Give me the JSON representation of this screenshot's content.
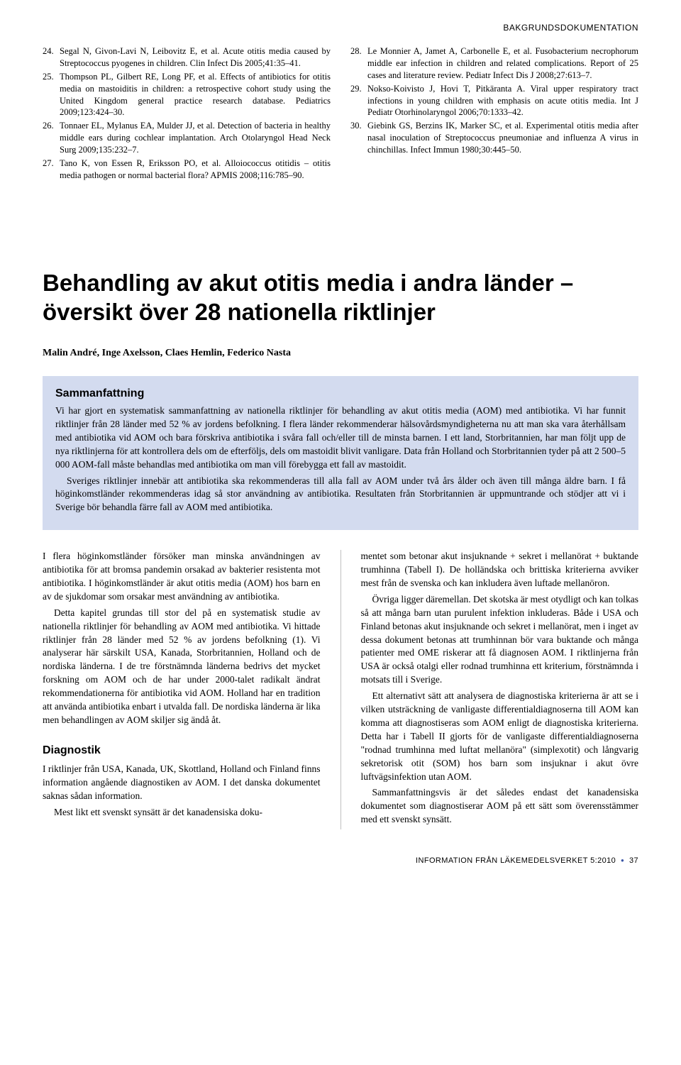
{
  "header": "BAKGRUNDSDOKUMENTATION",
  "refs_left": [
    {
      "n": "24.",
      "t": "Segal N, Givon-Lavi N, Leibovitz E, et al. Acute otitis media caused by Streptococcus pyogenes in children. Clin Infect Dis 2005;41:35–41."
    },
    {
      "n": "25.",
      "t": "Thompson PL, Gilbert RE, Long PF, et al. Effects of antibiotics for otitis media on mastoiditis in children: a retrospective cohort study using the United Kingdom general practice research database. Pediatrics 2009;123:424–30."
    },
    {
      "n": "26.",
      "t": "Tonnaer EL, Mylanus EA, Mulder JJ, et al. Detection of bacteria in healthy middle ears during cochlear implantation. Arch Otolaryngol Head Neck Surg 2009;135:232–7."
    },
    {
      "n": "27.",
      "t": "Tano K, von Essen R, Eriksson PO, et al. Alloiococcus otitidis – otitis media pathogen or normal bacterial flora? APMIS 2008;116:785–90."
    }
  ],
  "refs_right": [
    {
      "n": "28.",
      "t": "Le Monnier A, Jamet A, Carbonelle E, et al. Fusobacterium necrophorum middle ear infection in children and related complications. Report of 25 cases and literature review. Pediatr Infect Dis J 2008;27:613–7."
    },
    {
      "n": "29.",
      "t": "Nokso-Koivisto J, Hovi T, Pitkäranta A. Viral upper respiratory tract infections in young children with emphasis on acute otitis media. Int J Pediatr Otorhinolaryngol 2006;70:1333–42."
    },
    {
      "n": "30.",
      "t": "Giebink GS, Berzins IK, Marker SC, et al. Experimental otitis media after nasal inoculation of Streptococcus pneumoniae and influenza A virus in chinchillas. Infect Immun 1980;30:445–50."
    }
  ],
  "article_title": "Behandling av akut otitis media i andra länder – översikt över 28 nationella riktlinjer",
  "authors": "Malin André, Inge Axelsson, Claes Hemlin, Federico Nasta",
  "summary": {
    "heading": "Sammanfattning",
    "p1": "Vi har gjort en systematisk sammanfattning av nationella riktlinjer för behandling av akut otitis media (AOM) med antibiotika. Vi har funnit riktlinjer från 28 länder med 52 % av jordens befolkning. I flera länder rekommenderar hälsovårdsmyndigheterna nu att man ska vara återhållsam med antibiotika vid AOM och bara förskriva antibiotika i svåra fall och/eller till de minsta barnen. I ett land, Storbritannien, har man följt upp de nya riktlinjerna för att kontrollera dels om de efterföljs, dels om mastoidit blivit vanligare. Data från Holland och Storbritannien tyder på att 2 500–5 000 AOM-fall måste behandlas med antibiotika om man vill förebygga ett fall av mastoidit.",
    "p2": "Sveriges riktlinjer innebär att antibiotika ska rekommenderas till alla fall av AOM under två års ålder och även till många äldre barn. I få höginkomstländer rekommenderas idag så stor användning av antibiotika. Resultaten från Storbritannien är uppmuntrande och stödjer att vi i Sverige bör behandla färre fall av AOM med antibiotika."
  },
  "body": {
    "left": {
      "p1": "I flera höginkomstländer försöker man minska användningen av antibiotika för att bromsa pandemin orsakad av bakterier resistenta mot antibiotika. I höginkomstländer är akut otitis media (AOM) hos barn en av de sjukdomar som orsakar mest användning av antibiotika.",
      "p2": "Detta kapitel grundas till stor del på en systematisk studie av nationella riktlinjer för behandling av AOM med antibiotika. Vi hittade riktlinjer från 28 länder med 52 % av jordens befolkning (1). Vi analyserar här särskilt USA, Kanada, Storbritannien, Holland och de nordiska länderna. I de tre förstnämnda länderna bedrivs det mycket forskning om AOM och de har under 2000-talet radikalt ändrat rekommendationerna för antibiotika vid AOM. Holland har en tradition att använda antibiotika enbart i utvalda fall. De nordiska länderna är lika men behandlingen av AOM skiljer sig ändå åt.",
      "h1": "Diagnostik",
      "p3": "I riktlinjer från USA, Kanada, UK, Skottland, Holland och Finland finns information angående diagnostiken av AOM. I det danska dokumentet saknas sådan information.",
      "p4": "Mest likt ett svenskt synsätt är det kanadensiska doku-"
    },
    "right": {
      "p1": "mentet som betonar akut insjuknande + sekret i mellanörat + buktande trumhinna (Tabell I). De holländska och brittiska kriterierna avviker mest från de svenska och kan inkludera även luftade mellanöron.",
      "p2": "Övriga ligger däremellan. Det skotska är mest otydligt och kan tolkas så att många barn utan purulent infektion inkluderas. Både i USA och Finland betonas akut insjuknande och sekret i mellanörat, men i inget av dessa dokument betonas att trumhinnan bör vara buktande och många patienter med OME riskerar att få diagnosen AOM. I riktlinjerna från USA är också otalgi eller rodnad trumhinna ett kriterium, förstnämnda i motsats till i Sverige.",
      "p3": "Ett alternativt sätt att analysera de diagnostiska kriterierna är att se i vilken utsträckning de vanligaste differentialdiagnoserna till AOM kan komma att diagnostiseras som AOM enligt de diagnostiska kriterierna. Detta har i Tabell II gjorts för de vanligaste differentialdiagnoserna \"rodnad trumhinna med luftat mellanöra\" (simplexotit) och långvarig sekretorisk otit (SOM) hos barn som insjuknar i akut övre luftvägsinfektion utan AOM.",
      "p4": "Sammanfattningsvis är det således endast det kanadensiska dokumentet som diagnostiserar AOM på ett sätt som överensstämmer med ett svenskt synsätt."
    }
  },
  "footer": {
    "text": "INFORMATION FRÅN LÄKEMEDELSVERKET 5:2010",
    "page": "37"
  },
  "colors": {
    "summary_bg": "#d3dbef",
    "bullet": "#3a55a6"
  }
}
